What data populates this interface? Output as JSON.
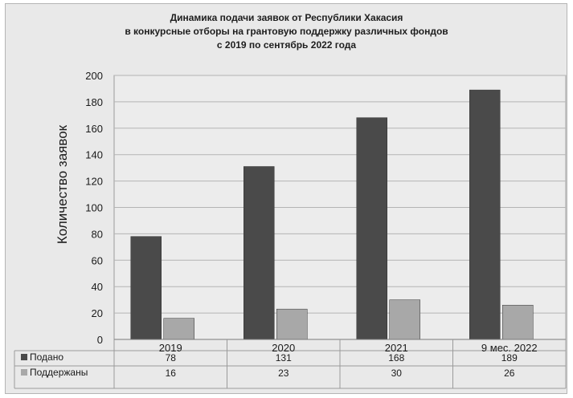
{
  "chart_data": {
    "type": "bar",
    "title_lines": [
      "Динамика подачи заявок от Республики Хакасия",
      "в конкурсные отборы на грантовую поддержку различных фондов",
      "с 2019 по сентябрь 2022 года"
    ],
    "ylabel": "Количество заявок",
    "xlabel": "",
    "categories": [
      "2019",
      "2020",
      "2021",
      "9 мес. 2022"
    ],
    "series": [
      {
        "name": "Подано",
        "values": [
          78,
          131,
          168,
          189
        ],
        "color": "#4a4a4a"
      },
      {
        "name": "Поддержаны",
        "values": [
          16,
          23,
          30,
          26
        ],
        "color": "#a8a8a8"
      }
    ],
    "ylim": [
      0,
      200
    ],
    "yticks": [
      "0",
      "20",
      "40",
      "60",
      "80",
      "100",
      "120",
      "140",
      "160",
      "180",
      "200"
    ],
    "grid": true,
    "legend": "data-table"
  }
}
